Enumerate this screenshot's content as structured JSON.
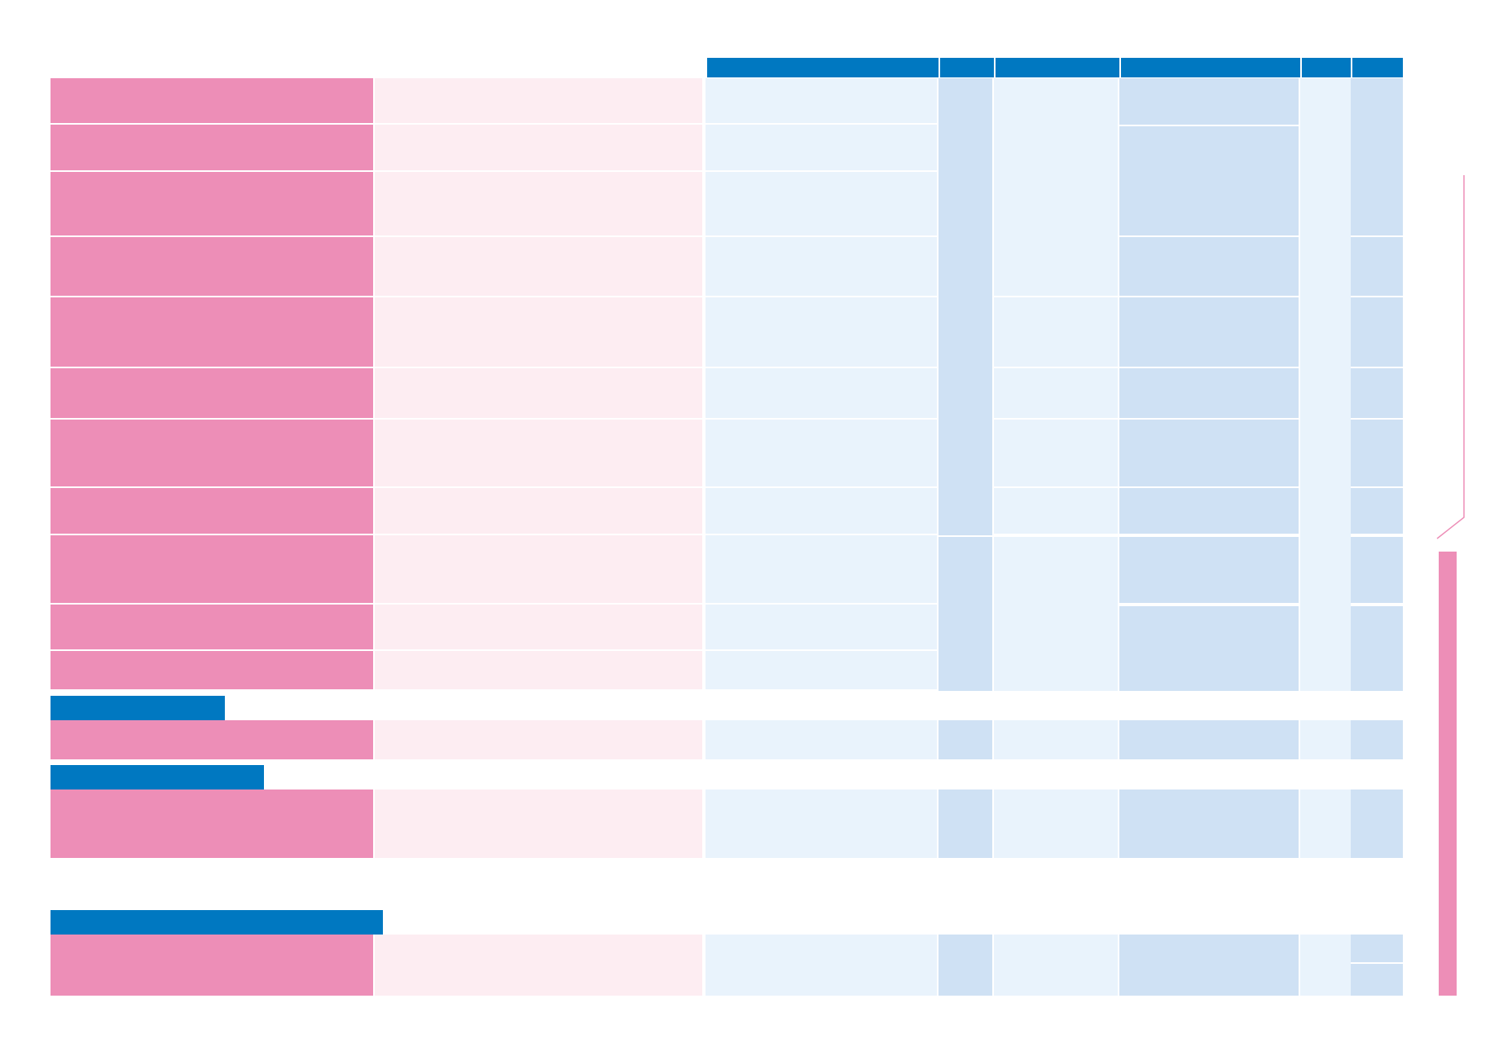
{
  "colors": {
    "header_blue": "#0078c1",
    "row_label_pink": "#ed8eb7",
    "row_detail_pink": "#fdedf2",
    "cell_light_blue": "#e9f3fc",
    "cell_mid_blue": "#cfe1f4",
    "side_marker_pink": "#ed8eb7"
  },
  "header": {
    "columns": [
      "",
      "",
      "",
      "",
      "",
      ""
    ]
  },
  "sections": [
    {
      "title": "",
      "rows": 11
    },
    {
      "title": "",
      "rows": 1
    },
    {
      "title": "",
      "rows": 1
    },
    {
      "title": "",
      "rows": 1
    }
  ],
  "rows": []
}
